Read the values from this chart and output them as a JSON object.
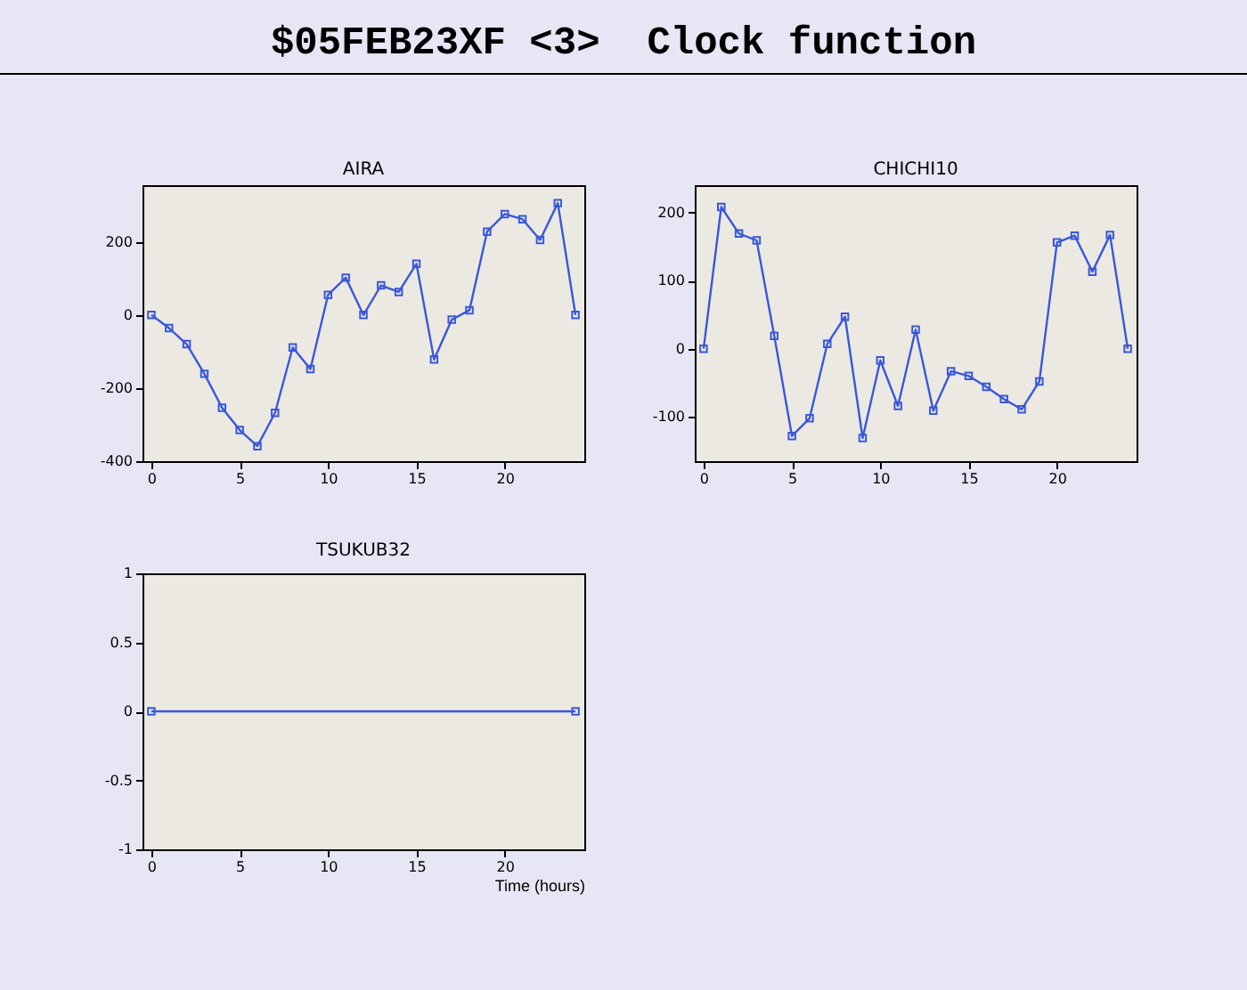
{
  "chart_data": [
    {
      "type": "line",
      "title": "AIRA",
      "annotations": [
        "$05FEB23XF <3>  Clock function"
      ],
      "x": [
        0,
        1,
        2,
        3,
        4,
        5,
        6,
        7,
        8,
        9,
        10,
        11,
        12,
        13,
        14,
        15,
        16,
        17,
        18,
        19,
        20,
        21,
        22,
        23,
        24
      ],
      "series": [
        {
          "color": "#3a58d8",
          "values": [
            0,
            -36,
            -80,
            -161,
            -254,
            -315,
            -359,
            -268,
            -89,
            -148,
            55,
            102,
            0,
            81,
            63,
            140,
            -122,
            -13,
            13,
            228,
            276,
            262,
            205,
            306,
            0
          ]
        }
      ],
      "xlim": [
        -0.5,
        24.5
      ],
      "xticks": [
        0,
        5,
        10,
        15,
        20
      ],
      "ylim": [
        -400,
        355
      ],
      "yticks": [
        -400,
        -200,
        0,
        200
      ],
      "marker": "square",
      "line_style": "solid",
      "grid": false
    },
    {
      "type": "line",
      "title": "CHICHI10",
      "x": [
        0,
        1,
        2,
        3,
        4,
        5,
        6,
        7,
        8,
        9,
        10,
        11,
        12,
        13,
        14,
        15,
        16,
        17,
        18,
        19,
        20,
        21,
        22,
        23,
        24
      ],
      "series": [
        {
          "color": "#3a58d8",
          "values": [
            0,
            208,
            169,
            159,
            19,
            -128,
            -102,
            7,
            47,
            -131,
            -17,
            -84,
            28,
            -91,
            -33,
            -40,
            -56,
            -74,
            -89,
            -48,
            156,
            166,
            113,
            167,
            0
          ]
        }
      ],
      "xlim": [
        -0.5,
        24.5
      ],
      "xticks": [
        0,
        5,
        10,
        15,
        20
      ],
      "ylim": [
        -165,
        240
      ],
      "yticks": [
        -100,
        0,
        100,
        200
      ],
      "marker": "square",
      "line_style": "solid",
      "grid": false
    },
    {
      "type": "line",
      "title": "TSUKUB32",
      "xlabel": "Time (hours)",
      "x": [
        0,
        24
      ],
      "series": [
        {
          "color": "#3a58d8",
          "values": [
            0,
            0
          ]
        }
      ],
      "xlim": [
        -0.5,
        24.5
      ],
      "xticks": [
        0,
        5,
        10,
        15,
        20
      ],
      "ylim": [
        -1,
        1
      ],
      "yticks": [
        -1,
        -0.5,
        0,
        0.5,
        1
      ],
      "marker": "square",
      "line_style": "solid",
      "grid": false
    }
  ]
}
